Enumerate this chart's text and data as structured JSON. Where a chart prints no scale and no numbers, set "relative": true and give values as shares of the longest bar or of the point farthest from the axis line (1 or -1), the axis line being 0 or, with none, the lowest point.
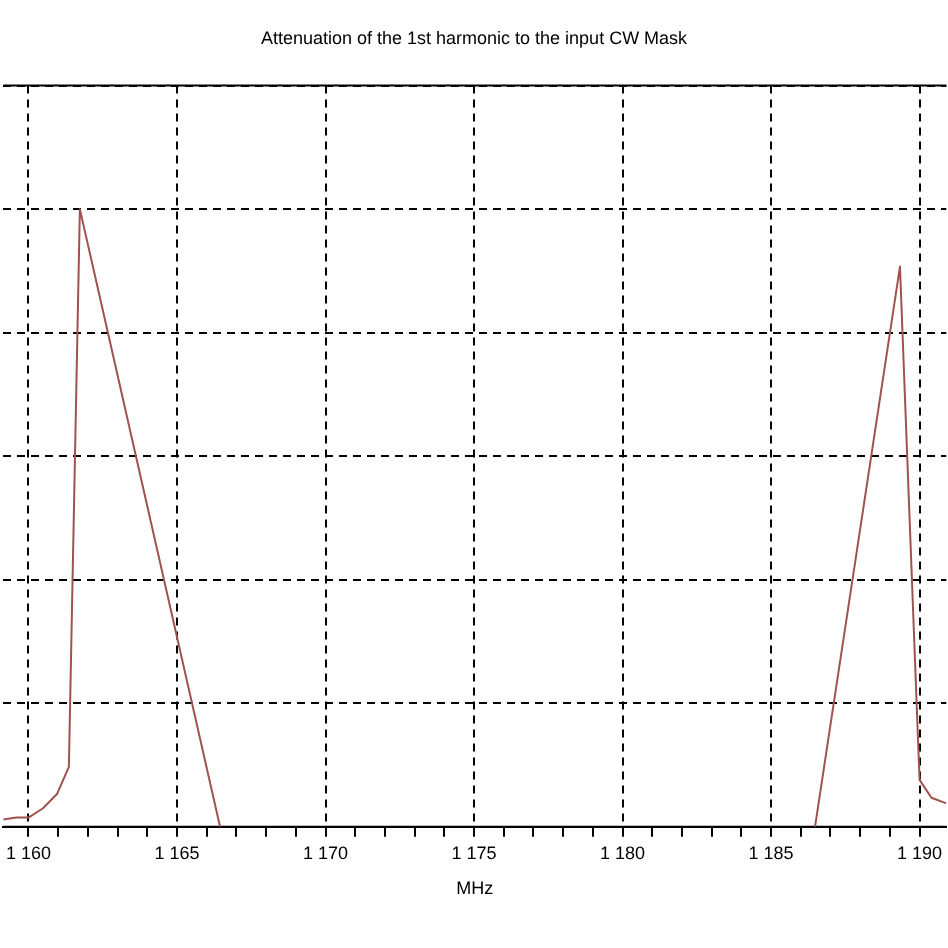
{
  "chart_data": {
    "type": "line",
    "title": "Attenuation of the 1st harmonic to the input CW Mask",
    "xlabel": "MHz",
    "relative": true,
    "grid": true,
    "marker": "none",
    "line_style": "solid",
    "legend": false,
    "tick_labels": "x",
    "xlim": [
      1159.15,
      1190.9
    ],
    "xticks": [
      {
        "value": 1160,
        "label": "1 160"
      },
      {
        "value": 1161,
        "label": null
      },
      {
        "value": 1162,
        "label": null
      },
      {
        "value": 1163,
        "label": null
      },
      {
        "value": 1164,
        "label": null
      },
      {
        "value": 1165,
        "label": "1 165"
      },
      {
        "value": 1166,
        "label": null
      },
      {
        "value": 1167,
        "label": null
      },
      {
        "value": 1168,
        "label": null
      },
      {
        "value": 1169,
        "label": null
      },
      {
        "value": 1170,
        "label": "1 170"
      },
      {
        "value": 1171,
        "label": null
      },
      {
        "value": 1172,
        "label": null
      },
      {
        "value": 1173,
        "label": null
      },
      {
        "value": 1174,
        "label": null
      },
      {
        "value": 1175,
        "label": "1 175"
      },
      {
        "value": 1176,
        "label": null
      },
      {
        "value": 1177,
        "label": null
      },
      {
        "value": 1178,
        "label": null
      },
      {
        "value": 1179,
        "label": null
      },
      {
        "value": 1180,
        "label": "1 180"
      },
      {
        "value": 1181,
        "label": null
      },
      {
        "value": 1182,
        "label": null
      },
      {
        "value": 1183,
        "label": null
      },
      {
        "value": 1184,
        "label": null
      },
      {
        "value": 1185,
        "label": "1 185"
      },
      {
        "value": 1186,
        "label": null
      },
      {
        "value": 1187,
        "label": null
      },
      {
        "value": 1188,
        "label": null
      },
      {
        "value": 1189,
        "label": null
      },
      {
        "value": 1190,
        "label": "1 190"
      }
    ],
    "series": [
      {
        "color": "#a0524f",
        "x": [
          1159.15,
          1159.6,
          1160,
          1160.49,
          1160.96,
          1161.36,
          1161.73,
          1166.45
        ],
        "values": [
          0.012,
          0.015,
          0.015,
          0.03,
          0.053,
          0.097,
          1.0,
          0
        ]
      },
      {
        "color": "#a0524f",
        "x": [
          1186.48,
          1189.34,
          1190.0,
          1190.4,
          1190.9
        ],
        "values": [
          0,
          0.907,
          0.076,
          0.047,
          0.038
        ]
      }
    ]
  }
}
